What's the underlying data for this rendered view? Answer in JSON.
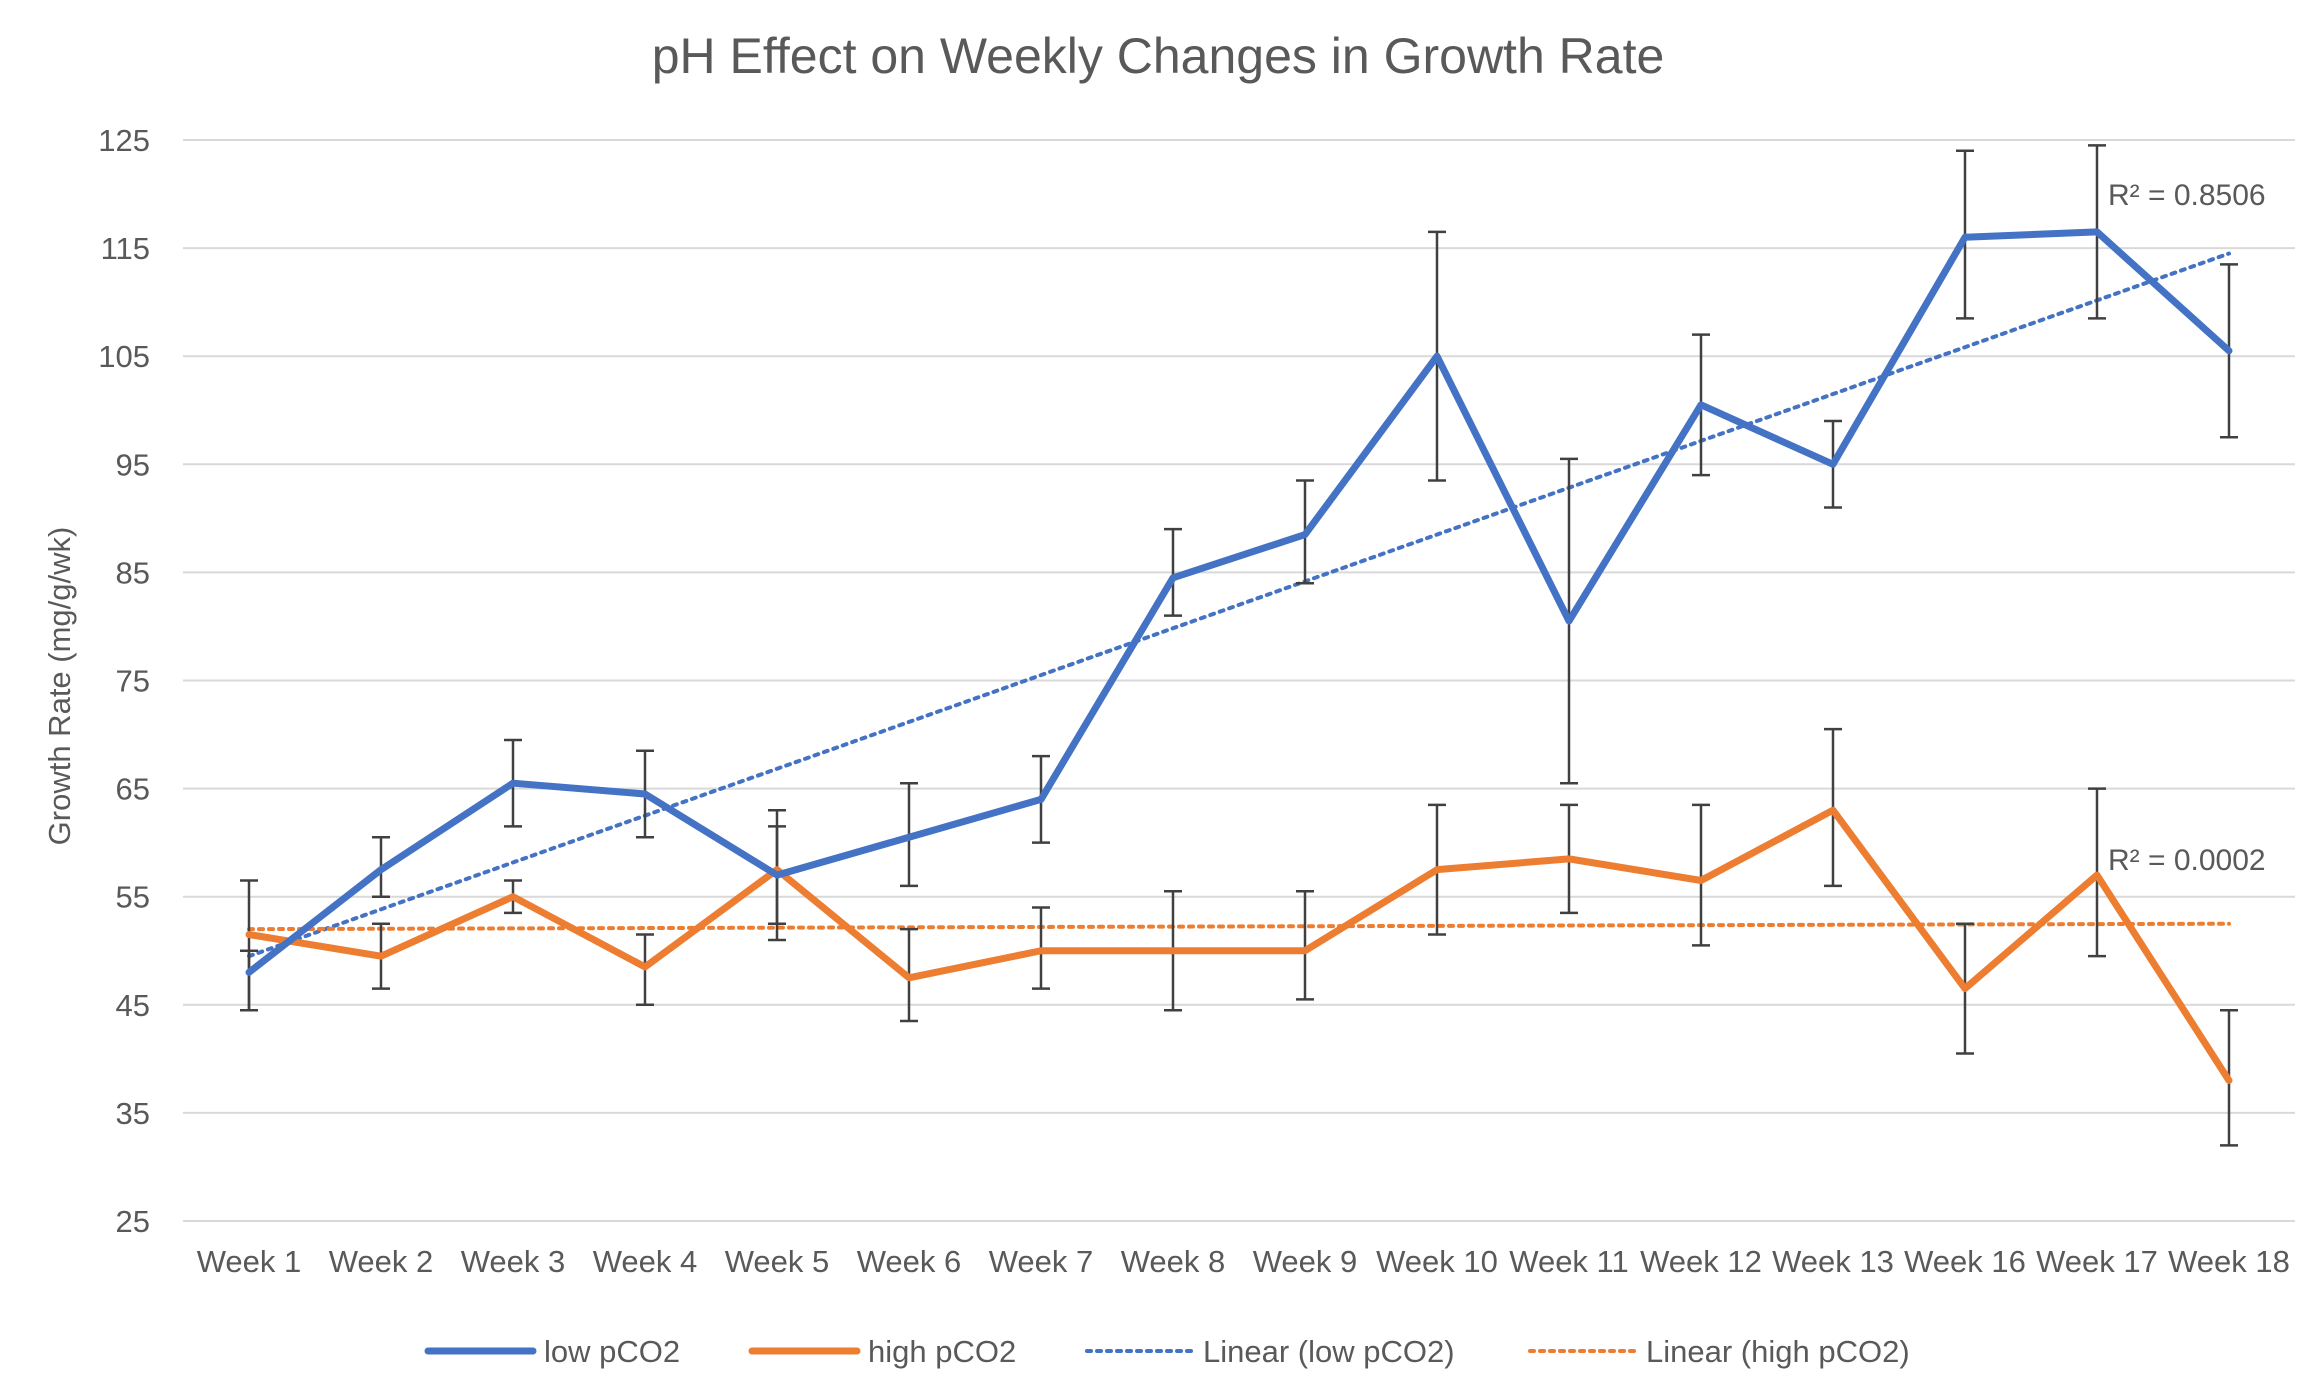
{
  "chart_data": {
    "type": "line",
    "title": "pH Effect on Weekly Changes in Growth Rate",
    "xlabel": "",
    "ylabel": "Growth Rate  (mg/g/wk)",
    "ylim": [
      25,
      125
    ],
    "yticks": [
      25,
      35,
      45,
      55,
      65,
      75,
      85,
      95,
      105,
      115,
      125
    ],
    "grid": true,
    "legend_position": "bottom",
    "categories": [
      "Week 1",
      "Week 2",
      "Week 3",
      "Week 4",
      "Week 5",
      "Week 6",
      "Week 7",
      "Week 8",
      "Week 9",
      "Week 10",
      "Week 11",
      "Week 12",
      "Week 13",
      "Week 16",
      "Week 17",
      "Week 18"
    ],
    "series": [
      {
        "name": "low pCO2",
        "color": "#4472c4",
        "values": [
          48,
          57.5,
          65.5,
          64.5,
          57,
          60.5,
          64,
          84.5,
          88.5,
          105,
          80.5,
          100.5,
          95,
          116,
          116.5,
          105.5
        ],
        "error_low": [
          44.5,
          55,
          61.5,
          60.5,
          52.5,
          56,
          60,
          81,
          84,
          93.5,
          65.5,
          94,
          91,
          108.5,
          108.5,
          97.5
        ],
        "error_high": [
          50,
          60.5,
          69.5,
          68.5,
          61.5,
          65.5,
          68,
          89,
          93.5,
          116.5,
          95.5,
          107,
          99,
          124,
          124.5,
          113.5
        ]
      },
      {
        "name": "high pCO2",
        "color": "#ed7d31",
        "values": [
          51.5,
          49.5,
          55,
          48.5,
          57.5,
          47.5,
          50,
          50,
          50,
          57.5,
          58.5,
          56.5,
          63,
          46.5,
          57,
          38
        ],
        "error_low": [
          44.5,
          46.5,
          53.5,
          45,
          51,
          43.5,
          46.5,
          44.5,
          45.5,
          51.5,
          53.5,
          50.5,
          56,
          40.5,
          49.5,
          32
        ],
        "error_high": [
          56.5,
          52.5,
          56.5,
          51.5,
          63,
          52,
          54,
          55.5,
          55.5,
          63.5,
          63.5,
          63.5,
          70.5,
          52.5,
          65,
          44.5
        ]
      }
    ],
    "trendlines": [
      {
        "name": "Linear (low pCO2)",
        "color": "#4472c4",
        "start": 49.5,
        "end": 114.5,
        "r2_label": "R² = 0.8506"
      },
      {
        "name": "Linear (high pCO2)",
        "color": "#ed7d31",
        "start": 52,
        "end": 52.5,
        "r2_label": "R² = 0.0002"
      }
    ]
  }
}
